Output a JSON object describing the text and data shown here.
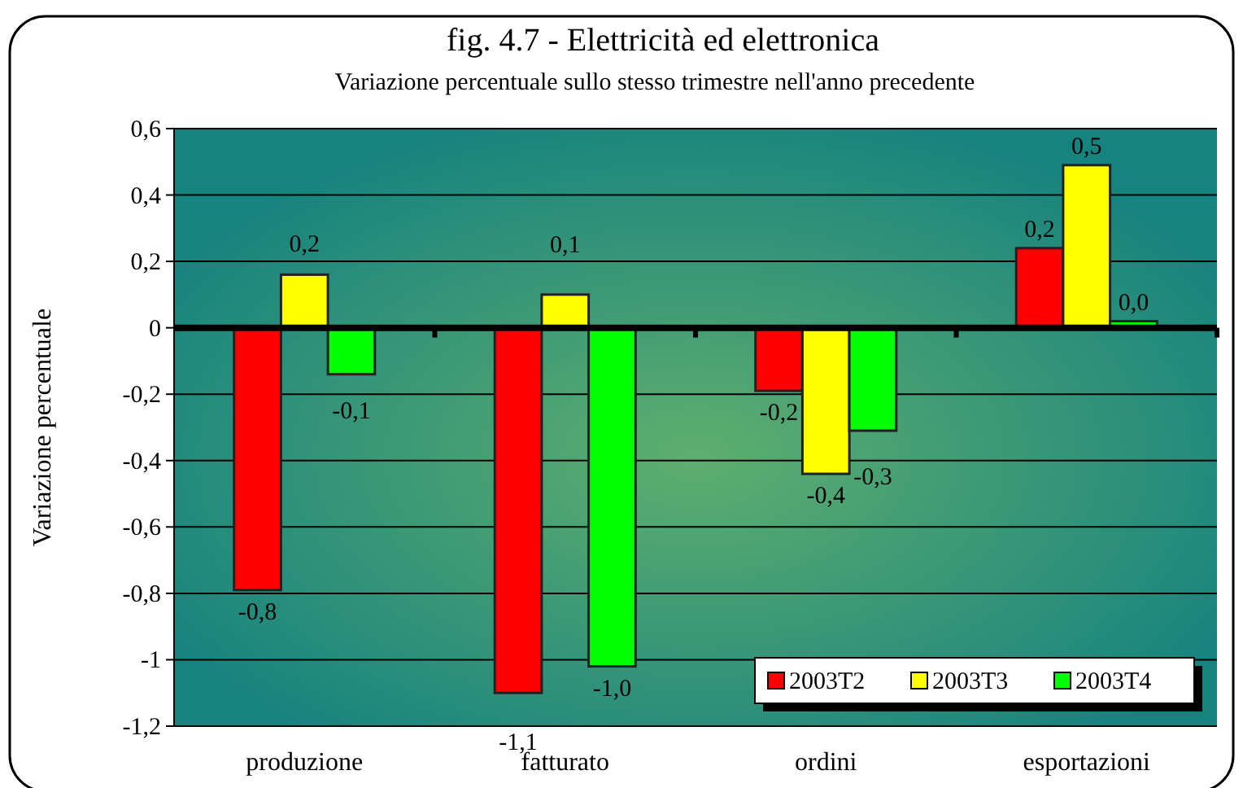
{
  "chart_data": {
    "type": "bar",
    "title": "fig. 4.7 - Elettricità ed elettronica",
    "subtitle": "Variazione percentuale sullo stesso trimestre nell'anno precedente",
    "ylabel": "Variazione percentuale",
    "categories": [
      "produzione",
      "fatturato",
      "ordini",
      "esportazioni"
    ],
    "series": [
      {
        "name": "2003T2",
        "color": "#ff0000",
        "values": [
          -0.79,
          -1.1,
          -0.19,
          0.24
        ],
        "value_labels": [
          "-0,8",
          "-1,1",
          "-0,2",
          "0,2"
        ]
      },
      {
        "name": "2003T3",
        "color": "#ffff00",
        "values": [
          0.16,
          0.1,
          -0.44,
          0.49
        ],
        "value_labels": [
          "0,2",
          "0,1",
          "-0,4",
          "0,5"
        ]
      },
      {
        "name": "2003T4",
        "color": "#00ff00",
        "values": [
          -0.14,
          -1.02,
          -0.31,
          0.02
        ],
        "value_labels": [
          "-0,1",
          "-1,0",
          "-0,3",
          "0,0"
        ]
      }
    ],
    "ylim": [
      -1.2,
      0.6
    ],
    "yticks": [
      {
        "value": -1.2,
        "label": "-1,2"
      },
      -1,
      {
        "value": -0.8,
        "label": "-0,8"
      },
      {
        "value": -0.6,
        "label": "-0,6"
      },
      {
        "value": -0.4,
        "label": "-0,4"
      },
      {
        "value": -0.2,
        "label": "-0,2"
      },
      0,
      {
        "value": 0.2,
        "label": "0,2"
      },
      {
        "value": 0.4,
        "label": "0,4"
      },
      {
        "value": 0.6,
        "label": "0,6"
      }
    ],
    "grid": "y",
    "legend": "bottom right"
  }
}
